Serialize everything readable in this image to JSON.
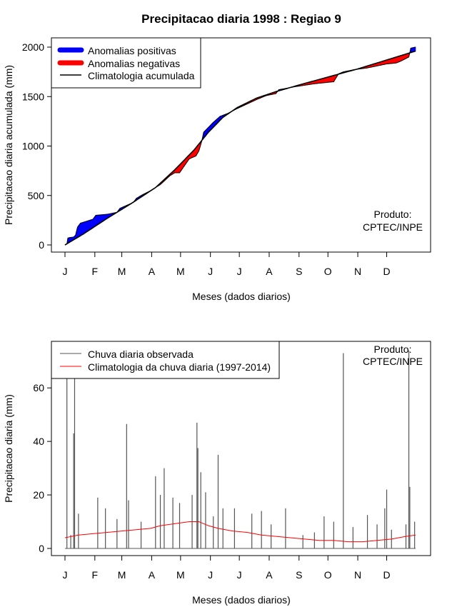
{
  "title": "Precipitacao diaria 1998 : Regiao 9",
  "colors": {
    "positive": "#0000ff",
    "negative": "#ff0000",
    "observed": "#555555",
    "climatology": "#ff0000",
    "cumclim": "#000000"
  },
  "credit": {
    "line1": "Produto:",
    "line2": "CPTEC/INPE"
  },
  "chart_data": [
    {
      "type": "area",
      "title": "Precipitacao diaria 1998 : Regiao 9",
      "xlabel": "Meses (dados diarios)",
      "ylabel": "Precipitacao diaria acumulada (mm)",
      "xlim": [
        1,
        365
      ],
      "ylim": [
        0,
        2000
      ],
      "yticks": [
        "0",
        "500",
        "1000",
        "1500",
        "2000"
      ],
      "month_labels": [
        "J",
        "F",
        "M",
        "A",
        "M",
        "J",
        "J",
        "A",
        "S",
        "O",
        "N",
        "D"
      ],
      "month_start_days": [
        1,
        32,
        60,
        91,
        121,
        152,
        182,
        213,
        244,
        274,
        305,
        335
      ],
      "legend": [
        "Anomalias positivas",
        "Anomalias negativas",
        "Climatologia acumulada"
      ],
      "legend_position": "top-left",
      "climatology_cumulative": {
        "days": [
          1,
          20,
          45,
          70,
          95,
          115,
          135,
          150,
          165,
          180,
          200,
          220,
          245,
          275,
          305,
          335,
          355,
          365
        ],
        "values": [
          0,
          110,
          270,
          420,
          580,
          760,
          960,
          1140,
          1290,
          1390,
          1485,
          1550,
          1620,
          1700,
          1780,
          1870,
          1930,
          1960
        ]
      },
      "observed_cumulative": {
        "days": [
          1,
          3,
          4,
          6,
          10,
          12,
          14,
          17,
          30,
          33,
          45,
          55,
          58,
          65,
          72,
          75,
          80,
          90,
          100,
          110,
          115,
          120,
          130,
          137,
          140,
          143,
          145,
          150,
          155,
          162,
          170,
          180,
          200,
          210,
          220,
          223,
          240,
          260,
          280,
          285,
          290,
          300,
          315,
          325,
          335,
          345,
          350,
          358,
          360,
          365
        ],
        "values": [
          0,
          10,
          70,
          75,
          80,
          100,
          180,
          220,
          260,
          300,
          310,
          330,
          370,
          400,
          430,
          470,
          500,
          550,
          610,
          700,
          730,
          730,
          870,
          900,
          950,
          1050,
          1140,
          1190,
          1240,
          1300,
          1330,
          1380,
          1470,
          1510,
          1530,
          1570,
          1600,
          1630,
          1650,
          1730,
          1750,
          1770,
          1790,
          1810,
          1830,
          1840,
          1860,
          1900,
          1990,
          2000
        ]
      }
    },
    {
      "type": "bar",
      "xlabel": "Meses (dados diarios)",
      "ylabel": "Precipitacao diaria (mm)",
      "xlim": [
        1,
        365
      ],
      "ylim": [
        0,
        75
      ],
      "yticks": [
        "0",
        "20",
        "40",
        "60"
      ],
      "month_labels": [
        "J",
        "F",
        "M",
        "A",
        "M",
        "J",
        "J",
        "A",
        "S",
        "O",
        "N",
        "D"
      ],
      "month_start_days": [
        1,
        32,
        60,
        91,
        121,
        152,
        182,
        213,
        244,
        274,
        305,
        335
      ],
      "legend": [
        "Chuva diaria observada",
        "Climatologia da chuva diaria (1997-2014)"
      ],
      "legend_position": "top-left",
      "observed_peaks": [
        {
          "day": 3,
          "value": 75
        },
        {
          "day": 7,
          "value": 5
        },
        {
          "day": 10,
          "value": 43
        },
        {
          "day": 11,
          "value": 74
        },
        {
          "day": 15,
          "value": 13
        },
        {
          "day": 35,
          "value": 19
        },
        {
          "day": 43,
          "value": 15
        },
        {
          "day": 55,
          "value": 11
        },
        {
          "day": 65,
          "value": 46.5
        },
        {
          "day": 67,
          "value": 18
        },
        {
          "day": 80,
          "value": 10
        },
        {
          "day": 95,
          "value": 27
        },
        {
          "day": 100,
          "value": 20
        },
        {
          "day": 104,
          "value": 30
        },
        {
          "day": 113,
          "value": 19
        },
        {
          "day": 120,
          "value": 17
        },
        {
          "day": 133,
          "value": 20
        },
        {
          "day": 138,
          "value": 47
        },
        {
          "day": 139,
          "value": 37.5
        },
        {
          "day": 142,
          "value": 28.5
        },
        {
          "day": 147,
          "value": 21
        },
        {
          "day": 155,
          "value": 12
        },
        {
          "day": 160,
          "value": 35
        },
        {
          "day": 165,
          "value": 15
        },
        {
          "day": 177,
          "value": 15
        },
        {
          "day": 195,
          "value": 13
        },
        {
          "day": 205,
          "value": 14
        },
        {
          "day": 215,
          "value": 9
        },
        {
          "day": 230,
          "value": 15
        },
        {
          "day": 248,
          "value": 5
        },
        {
          "day": 260,
          "value": 6
        },
        {
          "day": 270,
          "value": 12
        },
        {
          "day": 280,
          "value": 10
        },
        {
          "day": 290,
          "value": 73
        },
        {
          "day": 300,
          "value": 8
        },
        {
          "day": 315,
          "value": 12.5
        },
        {
          "day": 325,
          "value": 9
        },
        {
          "day": 333,
          "value": 15
        },
        {
          "day": 335,
          "value": 22
        },
        {
          "day": 340,
          "value": 7
        },
        {
          "day": 355,
          "value": 9
        },
        {
          "day": 358,
          "value": 74
        },
        {
          "day": 359,
          "value": 23
        },
        {
          "day": 364,
          "value": 10
        }
      ],
      "climatology_daily": {
        "days": [
          1,
          15,
          30,
          45,
          60,
          75,
          90,
          100,
          110,
          120,
          130,
          140,
          150,
          160,
          175,
          190,
          205,
          220,
          235,
          250,
          265,
          280,
          295,
          310,
          325,
          340,
          355,
          365
        ],
        "values": [
          4,
          5,
          5.5,
          6,
          6.5,
          7,
          7.5,
          8.5,
          9,
          9.5,
          10,
          10,
          8.5,
          7.5,
          6.5,
          6,
          5,
          4.5,
          4,
          3.5,
          3,
          3,
          2.5,
          2.5,
          3,
          3.5,
          4.5,
          5
        ]
      }
    }
  ]
}
